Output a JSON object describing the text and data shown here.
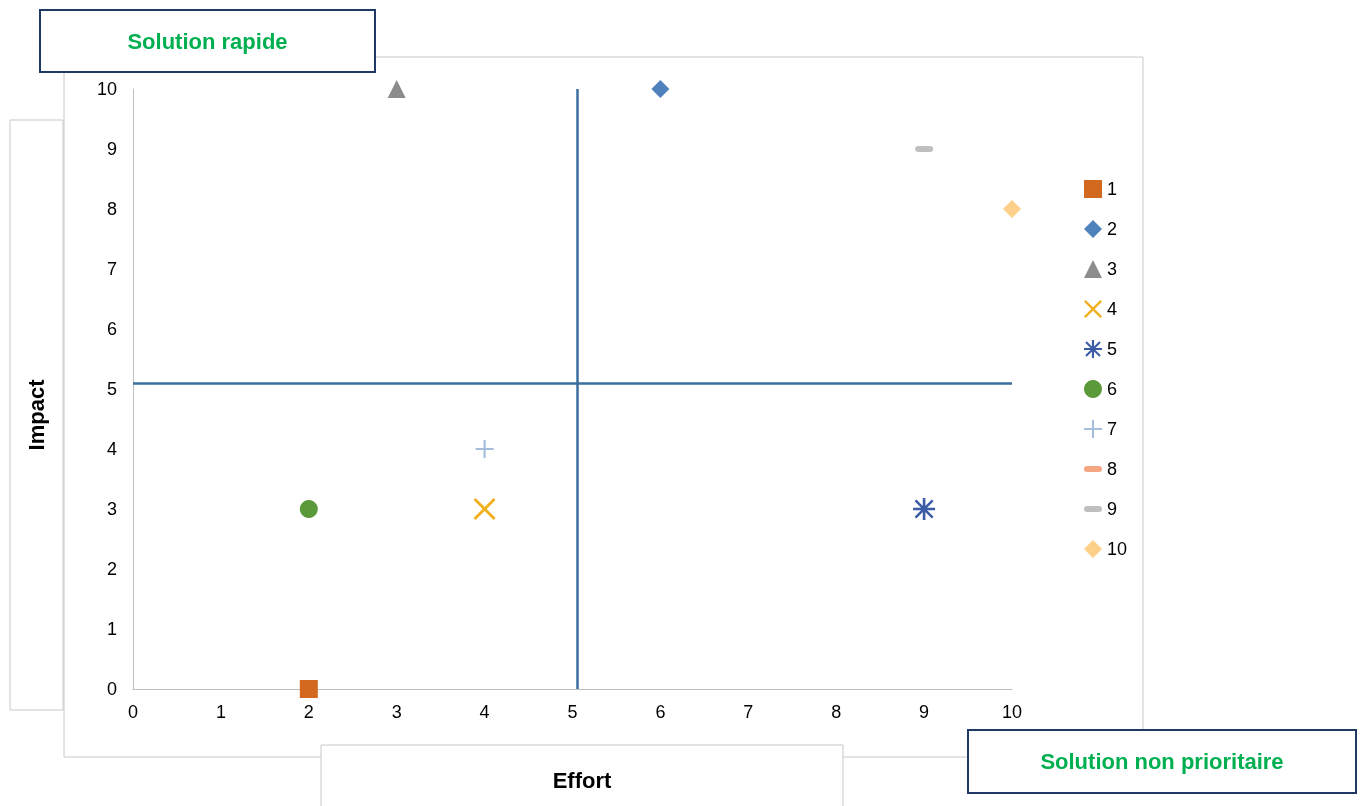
{
  "chart_data": {
    "type": "scatter",
    "xlabel": "Effort",
    "ylabel": "Impact",
    "annotations": [
      "Solution rapide",
      "Solution non prioritaire"
    ],
    "xlim": [
      0,
      10
    ],
    "xticks": [
      0,
      1,
      2,
      3,
      4,
      5,
      6,
      7,
      8,
      9,
      10
    ],
    "ylim": [
      0,
      10
    ],
    "yticks": [
      0,
      1,
      2,
      3,
      4,
      5,
      6,
      7,
      8,
      9,
      10
    ],
    "grid": false,
    "legend": "right",
    "series": [
      {
        "name": "1",
        "color": "#d2691e",
        "marker": "square",
        "x": [
          2
        ],
        "values": [
          0
        ]
      },
      {
        "name": "2",
        "color": "#4f81bd",
        "marker": "diamond",
        "x": [
          6
        ],
        "values": [
          10
        ]
      },
      {
        "name": "3",
        "color": "#8c8c8c",
        "marker": "triangle",
        "x": [
          3
        ],
        "values": [
          10
        ]
      },
      {
        "name": "4",
        "color": "#f2b01e",
        "marker": "cross",
        "x": [
          4
        ],
        "values": [
          3
        ]
      },
      {
        "name": "5",
        "color": "#3b5ba5",
        "marker": "cross",
        "x": [
          9
        ],
        "values": [
          3
        ]
      },
      {
        "name": "6",
        "color": "#5b9a3a",
        "marker": "circle",
        "x": [
          2
        ],
        "values": [
          3
        ]
      },
      {
        "name": "7",
        "color": "#a6bddb",
        "marker": "cross",
        "x": [
          4
        ],
        "values": [
          4
        ]
      },
      {
        "name": "8",
        "color": "#f4a582",
        "x": [
          null
        ],
        "values": [
          null
        ]
      },
      {
        "name": "9",
        "color": "#bfbfbf",
        "x": [
          9
        ],
        "values": [
          9
        ]
      },
      {
        "name": "10",
        "color": "#fcd088",
        "marker": "diamond",
        "x": [
          10
        ],
        "values": [
          8
        ]
      }
    ],
    "ref_lines": [
      {
        "axis": "x",
        "value": 5.05,
        "color": "#3a6fa0"
      },
      {
        "axis": "y",
        "value": 5.1,
        "color": "#3a6fa0"
      }
    ]
  }
}
